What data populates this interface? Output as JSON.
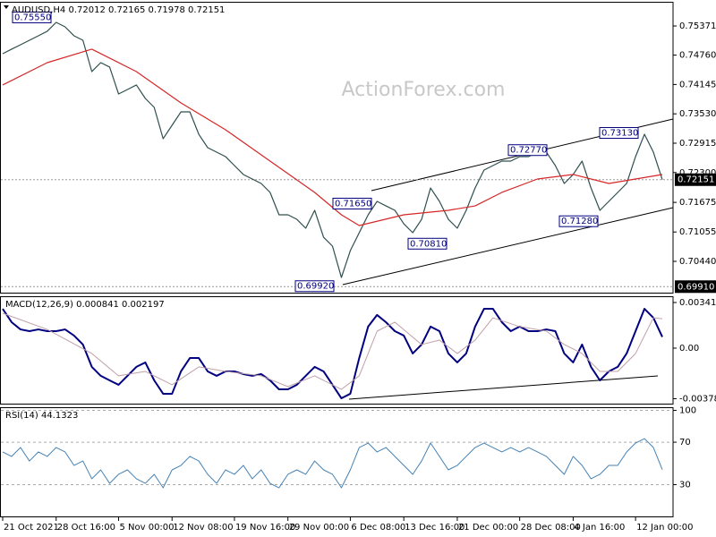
{
  "chart_data": [
    {
      "type": "line",
      "title": "AUDUSD,H4  0.72012 0.72165 0.71978 0.72151",
      "watermark": "ActionForex.com",
      "xlim": [
        0,
        74
      ],
      "xticks": [
        {
          "value": 0,
          "label": "21 Oct 2021"
        },
        {
          "value": 6,
          "label": "28 Oct 16:00"
        },
        {
          "value": 13,
          "label": "5 Nov 00:00"
        },
        {
          "value": 19,
          "label": "12 Nov 08:00"
        },
        {
          "value": 26,
          "label": "19 Nov 16:00"
        },
        {
          "value": 32,
          "label": "29 Nov 00:00"
        },
        {
          "value": 39,
          "label": "6 Dec 08:00"
        },
        {
          "value": 45,
          "label": "13 Dec 16:00"
        },
        {
          "value": 51,
          "label": "21 Dec 00:00"
        },
        {
          "value": 58,
          "label": "28 Dec 08:00"
        },
        {
          "value": 64,
          "label": "4 Jan 16:00"
        },
        {
          "value": 71,
          "label": "12 Jan 00:00"
        }
      ],
      "ylim": [
        0.69784,
        0.75877
      ],
      "yticks": [
        0.75371,
        {
          "value": 0.7476,
          "label": "0.74760"
        },
        0.74145,
        {
          "value": 0.7353,
          "label": "0.73530"
        },
        0.72915,
        {
          "value": 0.723,
          "label": "0.72300"
        },
        0.71675,
        0.71055,
        {
          "value": 0.7044,
          "label": "0.70440"
        }
      ],
      "grid": false,
      "series": [
        {
          "color": "#2f4f4f",
          "values": [
            0.7479,
            0.74884,
            0.74977,
            0.75071,
            0.75165,
            0.75259,
            0.75446,
            0.75352,
            0.75165,
            0.75071,
            0.74415,
            0.74602,
            0.74509,
            0.73946,
            0.7404,
            0.74134,
            0.73852,
            0.73665,
            0.73009,
            0.7329,
            0.73571,
            0.73571,
            0.73102,
            0.72821,
            0.72727,
            0.72634,
            0.72446,
            0.72259,
            0.72165,
            0.72071,
            0.71884,
            0.71415,
            0.71415,
            0.71321,
            0.71134,
            0.71509,
            0.70946,
            0.70759,
            0.70102,
            0.70665,
            0.7104,
            0.71415,
            0.71696,
            0.71602,
            0.71509,
            0.71227,
            0.7104,
            0.71321,
            0.71977,
            0.71696,
            0.71321,
            0.71134,
            0.71509,
            0.71977,
            0.72352,
            0.72446,
            0.7254,
            0.7254,
            0.72634,
            0.72634,
            0.72727,
            0.72727,
            0.72446,
            0.72071,
            0.72259,
            0.7254,
            0.71977,
            0.71509,
            0.71696,
            0.71884,
            0.72071,
            0.72634,
            0.73102,
            0.72727,
            0.72151
          ]
        },
        {
          "color": "#d62728",
          "x": [
            0,
            5,
            10,
            15,
            20,
            25,
            30,
            35,
            38,
            40,
            45,
            50,
            53,
            56,
            60,
            64,
            68,
            71,
            74
          ],
          "values": [
            0.74134,
            0.74602,
            0.74884,
            0.74415,
            0.73759,
            0.73196,
            0.7254,
            0.71884,
            0.71415,
            0.7119,
            0.71415,
            0.71509,
            0.71602,
            0.71884,
            0.72165,
            0.72259,
            0.72071,
            0.72165,
            0.72259
          ]
        }
      ],
      "price_labels": [
        {
          "value": 0.72151,
          "label": "0.72151"
        },
        {
          "value": 0.6991,
          "label": "0.69910"
        }
      ],
      "annotations": [
        {
          "value": 0.7555,
          "label": "0.75550"
        },
        {
          "value": 0.7165,
          "label": "0.71650"
        },
        {
          "value": 0.7081,
          "label": "0.70810"
        },
        {
          "value": 0.7277,
          "label": "0.72770"
        },
        {
          "value": 0.7313,
          "label": "0.73130"
        },
        {
          "value": 0.7128,
          "label": "0.71280"
        },
        {
          "value": 0.6992,
          "label": "0.69920"
        }
      ]
    },
    {
      "type": "line",
      "title": "MACD(12,26,9) 0.000841 0.002197",
      "ylim": [
        -0.00415,
        0.00388
      ],
      "yticks": [
        0.003412,
        {
          "value": 0,
          "label": "0.00"
        },
        -0.00378
      ],
      "grid": false,
      "series": [
        {
          "color": "#000080",
          "width": 2,
          "values": [
            0.00294,
            0.00194,
            0.0014,
            0.00127,
            0.0014,
            0.00127,
            0.00127,
            0.0014,
            0.00094,
            0.00027,
            -0.0014,
            -0.00207,
            -0.00241,
            -0.00274,
            -0.00207,
            -0.0014,
            -0.00107,
            -0.00241,
            -0.00341,
            -0.00341,
            -0.00174,
            -0.00074,
            -0.00074,
            -0.00174,
            -0.00207,
            -0.00174,
            -0.00174,
            -0.00194,
            -0.00207,
            -0.00194,
            -0.00241,
            -0.00308,
            -0.00308,
            -0.00274,
            -0.00207,
            -0.0014,
            -0.00174,
            -0.00274,
            -0.00375,
            -0.00341,
            -0.00074,
            0.00161,
            0.00248,
            0.00194,
            0.00127,
            0.00094,
            -0.0004,
            0.00027,
            0.00161,
            0.00127,
            -0.0004,
            -0.00107,
            -0.0004,
            0.00161,
            0.00294,
            0.00294,
            0.00194,
            0.00127,
            0.00161,
            0.00127,
            0.00127,
            0.0014,
            0.00127,
            -0.0004,
            -0.00107,
            0.00027,
            -0.0014,
            -0.00241,
            -0.00174,
            -0.0014,
            -0.0004,
            0.00127,
            0.00294,
            0.00227,
            0.000841
          ]
        },
        {
          "color": "#c0a0a8",
          "width": 1,
          "x": [
            0,
            5,
            10,
            13,
            16,
            19,
            22,
            25,
            29,
            32,
            35,
            38,
            40,
            42,
            44,
            47,
            49,
            51,
            53,
            55,
            58,
            61,
            63,
            65,
            67,
            69,
            71,
            73,
            74
          ],
          "values": [
            0.00261,
            0.0014,
            -0.0004,
            -0.00207,
            -0.00174,
            -0.00274,
            -0.0014,
            -0.00174,
            -0.00207,
            -0.00288,
            -0.00207,
            -0.00308,
            -0.00207,
            0.00127,
            0.00194,
            0.00027,
            0.0006,
            -0.0004,
            0.0006,
            0.00227,
            0.00161,
            0.00127,
            0.00027,
            -0.0004,
            -0.00174,
            -0.00174,
            -0.0004,
            0.00227,
            0.002197
          ]
        }
      ]
    },
    {
      "type": "line",
      "title": "RSI(14) 44.1323",
      "ylim": [
        0,
        103
      ],
      "yticks": [
        100,
        70,
        30
      ],
      "grid": true,
      "series": [
        {
          "color": "#4682b4",
          "width": 1,
          "values": [
            60.8,
            56.6,
            65,
            52.3,
            60.8,
            56.6,
            65,
            60.8,
            48.1,
            52.3,
            35.5,
            43.9,
            31.2,
            39.7,
            43.9,
            35.5,
            31.2,
            39.7,
            27,
            43.9,
            48.1,
            56.6,
            52.3,
            39.7,
            31.2,
            43.9,
            39.7,
            48.1,
            35.5,
            43.9,
            31.2,
            27,
            39.7,
            43.9,
            39.7,
            52.3,
            43.9,
            39.7,
            27,
            43.9,
            65,
            69.2,
            60.8,
            65,
            56.6,
            48.1,
            39.7,
            52.3,
            69.2,
            56.6,
            43.9,
            48.1,
            56.6,
            65,
            69.2,
            65,
            60.8,
            65,
            60.8,
            65,
            60.8,
            56.6,
            48.1,
            39.7,
            56.6,
            48.1,
            35.5,
            39.7,
            48.1,
            48.1,
            60.8,
            69.2,
            73.4,
            65,
            44.1323
          ]
        }
      ]
    }
  ]
}
